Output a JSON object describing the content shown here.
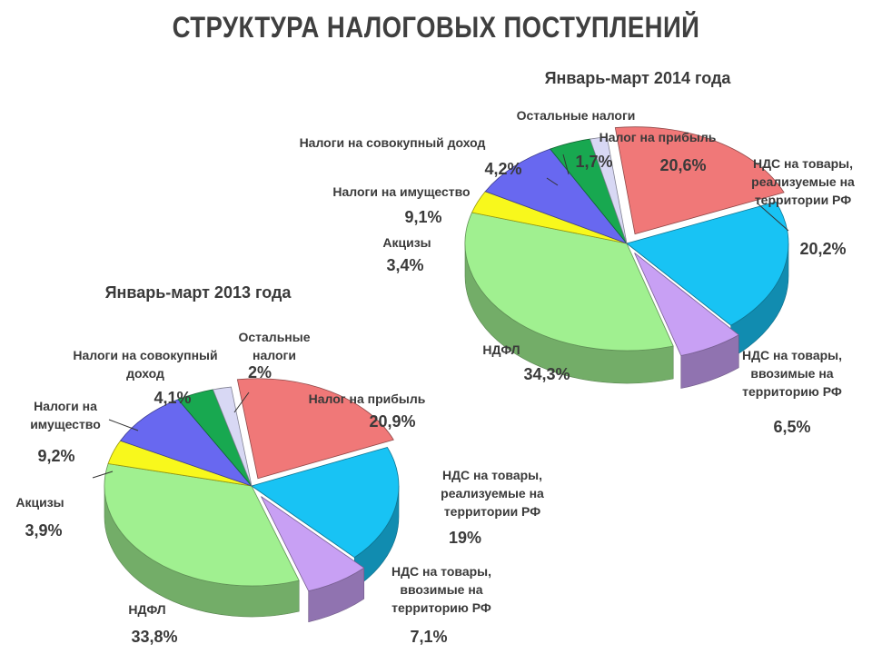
{
  "title": "СТРУКТУРА НАЛОГОВЫХ ПОСТУПЛЕНИЙ",
  "chart_data": [
    {
      "type": "pie",
      "title": "Январь-март 2014 года",
      "slices": [
        {
          "label": [
            "Налог на прибыль"
          ],
          "value": 20.6,
          "value_label": "20,6%",
          "color": "#f07878"
        },
        {
          "label": [
            "НДС на товары,",
            "реализуемые на",
            "территории РФ"
          ],
          "value": 20.2,
          "value_label": "20,2%",
          "color": "#18c3f4"
        },
        {
          "label": [
            "НДС на товары,",
            "ввозимые на",
            "территорию РФ"
          ],
          "value": 6.5,
          "value_label": "6,5%",
          "color": "#c8a0f4"
        },
        {
          "label": [
            "НДФЛ"
          ],
          "value": 34.3,
          "value_label": "34,3%",
          "color": "#a0f090"
        },
        {
          "label": [
            "Акцизы"
          ],
          "value": 3.4,
          "value_label": "3,4%",
          "color": "#f8f81c"
        },
        {
          "label": [
            "Налоги на имущество"
          ],
          "value": 9.1,
          "value_label": "9,1%",
          "color": "#6868f0"
        },
        {
          "label": [
            "Налоги на совокупный доход"
          ],
          "value": 4.2,
          "value_label": "4,2%",
          "color": "#18a850"
        },
        {
          "label": [
            "Остальные налоги"
          ],
          "value": 1.7,
          "value_label": "1,7%",
          "color": "#d8d8f4"
        }
      ]
    },
    {
      "type": "pie",
      "title": "Январь-март 2013 года",
      "slices": [
        {
          "label": [
            "Налог на прибыль"
          ],
          "value": 20.9,
          "value_label": "20,9%",
          "color": "#f07878"
        },
        {
          "label": [
            "НДС на товары,",
            "реализуемые на",
            "территории РФ"
          ],
          "value": 19,
          "value_label": "19%",
          "color": "#18c3f4"
        },
        {
          "label": [
            "НДС на товары,",
            "ввозимые на",
            "территорию РФ"
          ],
          "value": 7.1,
          "value_label": "7,1%",
          "color": "#c8a0f4"
        },
        {
          "label": [
            "НДФЛ"
          ],
          "value": 33.8,
          "value_label": "33,8%",
          "color": "#a0f090"
        },
        {
          "label": [
            "Акцизы"
          ],
          "value": 3.9,
          "value_label": "3,9%",
          "color": "#f8f81c"
        },
        {
          "label": [
            "Налоги на",
            "имущество"
          ],
          "value": 9.2,
          "value_label": "9,2%",
          "color": "#6868f0"
        },
        {
          "label": [
            "Налоги на совокупный",
            "доход"
          ],
          "value": 4.1,
          "value_label": "4,1%",
          "color": "#18a850"
        },
        {
          "label": [
            "Остальные",
            "налоги"
          ],
          "value": 2,
          "value_label": "2%",
          "color": "#d8d8f4"
        }
      ]
    }
  ]
}
